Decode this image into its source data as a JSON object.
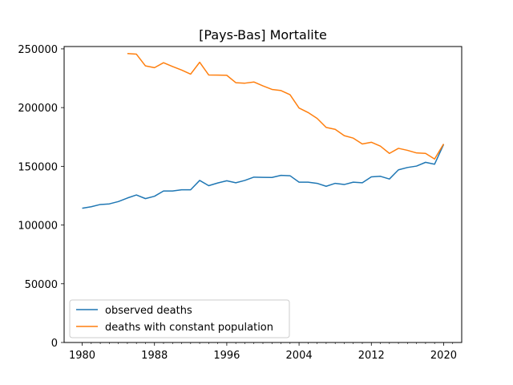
{
  "chart_data": {
    "type": "line",
    "title": "[Pays-Bas] Mortalite",
    "xlabel": "",
    "ylabel": "",
    "xlim": [
      1978,
      2022
    ],
    "ylim": [
      0,
      252000
    ],
    "x_ticks": [
      1980,
      1988,
      1996,
      2004,
      2012,
      2020
    ],
    "x_minor_ticks": [
      1981,
      1982,
      1983,
      1984,
      1985,
      1986,
      1987,
      1989,
      1990,
      1991,
      1992,
      1993,
      1994,
      1995,
      1997,
      1998,
      1999,
      2000,
      2001,
      2002,
      2003,
      2005,
      2006,
      2007,
      2008,
      2009,
      2010,
      2011,
      2013,
      2014,
      2015,
      2016,
      2017,
      2018,
      2019,
      2021
    ],
    "y_ticks": [
      0,
      50000,
      100000,
      150000,
      200000,
      250000
    ],
    "grid": false,
    "legend_position": "lower-left",
    "series": [
      {
        "name": "observed deaths",
        "color": "#1f77b4",
        "x": [
          1980,
          1981,
          1982,
          1983,
          1984,
          1985,
          1986,
          1987,
          1988,
          1989,
          1990,
          1991,
          1992,
          1993,
          1994,
          1995,
          1996,
          1997,
          1998,
          1999,
          2000,
          2001,
          2002,
          2003,
          2004,
          2005,
          2006,
          2007,
          2008,
          2009,
          2010,
          2011,
          2012,
          2013,
          2014,
          2015,
          2016,
          2017,
          2018,
          2019,
          2020
        ],
        "values": [
          114300,
          115600,
          117500,
          118000,
          120000,
          123000,
          125600,
          122500,
          124500,
          129000,
          129000,
          130000,
          130000,
          138000,
          133500,
          135800,
          137700,
          136000,
          138000,
          140800,
          140600,
          140500,
          142300,
          142000,
          136500,
          136500,
          135500,
          133000,
          135500,
          134500,
          136500,
          136000,
          141000,
          141500,
          139200,
          147000,
          149000,
          150200,
          153400,
          151800,
          168600
        ]
      },
      {
        "name": "deaths with constant population",
        "color": "#ff7f0e",
        "x": [
          1985,
          1986,
          1987,
          1988,
          1989,
          1990,
          1991,
          1992,
          1993,
          1994,
          1995,
          1996,
          1997,
          1998,
          1999,
          2000,
          2001,
          2002,
          2003,
          2004,
          2005,
          2006,
          2007,
          2008,
          2009,
          2010,
          2011,
          2012,
          2013,
          2014,
          2015,
          2016,
          2017,
          2018,
          2019,
          2020
        ],
        "values": [
          246000,
          245500,
          235500,
          234000,
          238200,
          235000,
          232000,
          228500,
          238600,
          227800,
          227700,
          227500,
          221200,
          220800,
          221800,
          218500,
          215500,
          214500,
          211000,
          199600,
          195800,
          190800,
          183100,
          181500,
          176100,
          174000,
          169000,
          170500,
          167200,
          161000,
          165300,
          163600,
          161400,
          161000,
          156200,
          169000
        ]
      }
    ]
  }
}
